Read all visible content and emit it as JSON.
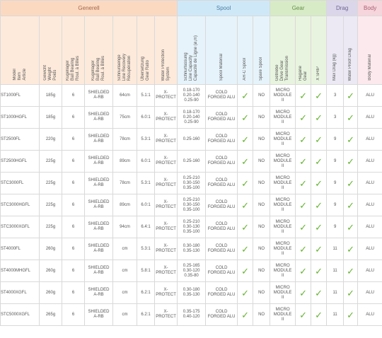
{
  "groups": [
    {
      "label": "Generell",
      "span": 9,
      "key": "generell"
    },
    {
      "label": "Spool",
      "span": 4,
      "key": "spool"
    },
    {
      "label": "Gear",
      "span": 4,
      "key": "gear"
    },
    {
      "label": "Drag",
      "span": 2,
      "key": "drag"
    },
    {
      "label": "Body",
      "span": 1,
      "key": "body"
    }
  ],
  "columns": [
    {
      "label": "Model\nItem\nArticle",
      "group": "generell",
      "width": 55
    },
    {
      "label": "Gewicht\nWeight\nPoids",
      "group": "generell",
      "width": 32
    },
    {
      "label": "Kugellager\nBall Bearing\nRoul. à Billes",
      "group": "generell",
      "width": 32
    },
    {
      "label": "Kugellager\nBall Bearing\nRoul. à Billes",
      "group": "generell",
      "width": 40
    },
    {
      "label": "Schnurlaenge\nLine Recovery\nRécupération",
      "group": "generell",
      "width": 34
    },
    {
      "label": "Übersetzung\nGear Ratio",
      "group": "generell",
      "width": 25
    },
    {
      "label": "Water Protection\nSystem",
      "group": "generell",
      "width": 32
    },
    {
      "label": "",
      "group": "generell",
      "width": 0
    },
    {
      "label": "",
      "group": "generell",
      "width": 0
    },
    {
      "label": "Schnurfassung\nLine Capacity\nCapacité de Ligne (ø,m)",
      "group": "spool",
      "width": 40
    },
    {
      "label": "Spool Material",
      "group": "spool",
      "width": 45
    },
    {
      "label": "AR-C Spool",
      "group": "spool",
      "width": 22
    },
    {
      "label": "Spare Spool",
      "group": "spool",
      "width": 24
    },
    {
      "label": "Getriebe\nDrive Gear\nTransmission",
      "group": "gear",
      "width": 36
    },
    {
      "label": "Hagane\nGear",
      "group": "gear",
      "width": 22
    },
    {
      "label": "X SHIP",
      "group": "gear",
      "width": 22
    },
    {
      "label": "",
      "group": "gear",
      "width": 0
    },
    {
      "label": "Max Drag (kg)",
      "group": "drag",
      "width": 24
    },
    {
      "label": "Water Proof Drag",
      "group": "drag",
      "width": 20
    },
    {
      "label": "Body Material",
      "group": "body",
      "width": 35
    }
  ],
  "tick": "✓",
  "rows": [
    {
      "model": "ST1000FL",
      "weight": "185g",
      "bearings": "6",
      "bearing_type": "SHIELDED\nA-RB",
      "recovery": "64cm",
      "ratio": "5.1:1",
      "protection": "X-\nPROTECT",
      "capacity": "0.18-170\n0.20-140\n0.25-90",
      "spool_material": "COLD\nFORGED ALU",
      "arc": true,
      "spare": "NO",
      "drive_gear": "MICRO\nMODULE\nII",
      "hagane": true,
      "xship": true,
      "drag": "3",
      "wp_drag": true,
      "body": "ALU"
    },
    {
      "model": "ST1000HGFL",
      "weight": "185g",
      "bearings": "6",
      "bearing_type": "SHIELDED\nA-RB",
      "recovery": "75cm",
      "ratio": "6.0:1",
      "protection": "X-\nPROTECT",
      "capacity": "0.18-170\n0.20-140\n0.25-90",
      "spool_material": "COLD\nFORGED ALU",
      "arc": true,
      "spare": "NO",
      "drive_gear": "MICRO\nMODULE\nII",
      "hagane": true,
      "xship": true,
      "drag": "3",
      "wp_drag": true,
      "body": "ALU"
    },
    {
      "model": "ST2500FL",
      "weight": "220g",
      "bearings": "6",
      "bearing_type": "SHIELDED\nA-RB",
      "recovery": "78cm",
      "ratio": "5.3:1",
      "protection": "X-\nPROTECT",
      "capacity": "0.25-160",
      "spool_material": "COLD\nFORGED ALU",
      "arc": true,
      "spare": "NO",
      "drive_gear": "MICRO\nMODULE\nII",
      "hagane": true,
      "xship": true,
      "drag": "9",
      "wp_drag": true,
      "body": "ALU"
    },
    {
      "model": "ST2500HGFL",
      "weight": "225g",
      "bearings": "6",
      "bearing_type": "SHIELDED\nA-RB",
      "recovery": "89cm",
      "ratio": "6.0:1",
      "protection": "X-\nPROTECT",
      "capacity": "0.25-160",
      "spool_material": "COLD\nFORGED ALU",
      "arc": true,
      "spare": "NO",
      "drive_gear": "MICRO\nMODULE\nII",
      "hagane": true,
      "xship": true,
      "drag": "9",
      "wp_drag": true,
      "body": "ALU"
    },
    {
      "model": "STC3000FL",
      "weight": "225g",
      "bearings": "6",
      "bearing_type": "SHIELDED\nA-RB",
      "recovery": "78cm",
      "ratio": "5.3:1",
      "protection": "X-\nPROTECT",
      "capacity": "0.25-210\n0.30-150\n0.35-100",
      "spool_material": "COLD\nFORGED ALU",
      "arc": true,
      "spare": "NO",
      "drive_gear": "MICRO\nMODULE\nII",
      "hagane": true,
      "xship": true,
      "drag": "9",
      "wp_drag": true,
      "body": "ALU"
    },
    {
      "model": "STC3000HGFL",
      "weight": "225g",
      "bearings": "6",
      "bearing_type": "SHIELDED\nA-RB",
      "recovery": "89cm",
      "ratio": "6.0:1",
      "protection": "X-\nPROTECT",
      "capacity": "0.25-210\n0.30-150\n0.35-100",
      "spool_material": "COLD\nFORGED ALU",
      "arc": true,
      "spare": "NO",
      "drive_gear": "MICRO\nMODULE\nII",
      "hagane": true,
      "xship": true,
      "drag": "9",
      "wp_drag": true,
      "body": "ALU"
    },
    {
      "model": "STC3000XGFL",
      "weight": "225g",
      "bearings": "6",
      "bearing_type": "SHIELDED\nA-RB",
      "recovery": "94cm",
      "ratio": "6.4:1",
      "protection": "X-\nPROTECT",
      "capacity": "0.25-210\n0.30-130\n0.35-100",
      "spool_material": "COLD\nFORGED ALU",
      "arc": true,
      "spare": "NO",
      "drive_gear": "MICRO\nMODULE\nII",
      "hagane": true,
      "xship": true,
      "drag": "9",
      "wp_drag": true,
      "body": "ALU"
    },
    {
      "model": "ST4000FL",
      "weight": "260g",
      "bearings": "6",
      "bearing_type": "SHIELDED\nA-RB",
      "recovery": "cm",
      "ratio": "5.3:1",
      "protection": "X-\nPROTECT",
      "capacity": "0.30-180\n0.35-130",
      "spool_material": "COLD\nFORGED ALU",
      "arc": true,
      "spare": "NO",
      "drive_gear": "MICRO\nMODULE\nII",
      "hagane": true,
      "xship": true,
      "drag": "11",
      "wp_drag": true,
      "body": "ALU"
    },
    {
      "model": "ST4000MHGFL",
      "weight": "260g",
      "bearings": "6",
      "bearing_type": "SHIELDED\nA-RB",
      "recovery": "cm",
      "ratio": "5.8:1",
      "protection": "X-\nPROTECT",
      "capacity": "0.25-165\n0.30-120\n0.35-80",
      "spool_material": "COLD\nFORGED ALU",
      "arc": true,
      "spare": "NO",
      "drive_gear": "MICRO\nMODULE\nII",
      "hagane": true,
      "xship": true,
      "drag": "11",
      "wp_drag": true,
      "body": "ALU"
    },
    {
      "model": "ST4000XGFL",
      "weight": "260g",
      "bearings": "6",
      "bearing_type": "SHIELDED\nA-RB",
      "recovery": "cm",
      "ratio": "6.2:1",
      "protection": "X-\nPROTECT",
      "capacity": "0.30-180\n0.35-130",
      "spool_material": "COLD\nFORGED ALU",
      "arc": true,
      "spare": "NO",
      "drive_gear": "MICRO\nMODULE\nII",
      "hagane": true,
      "xship": true,
      "drag": "11",
      "wp_drag": true,
      "body": "ALU"
    },
    {
      "model": "STC5000XGFL",
      "weight": "265g",
      "bearings": "6",
      "bearing_type": "SHIELDED\nA-RB",
      "recovery": "cm",
      "ratio": "6.2:1",
      "protection": "X-\nPROTECT",
      "capacity": "0.35-175\n0.40-120",
      "spool_material": "COLD\nFORGED ALU",
      "arc": true,
      "spare": "NO",
      "drive_gear": "MICRO\nMODULE\nII",
      "hagane": true,
      "xship": true,
      "drag": "11",
      "wp_drag": true,
      "body": "ALU"
    }
  ]
}
